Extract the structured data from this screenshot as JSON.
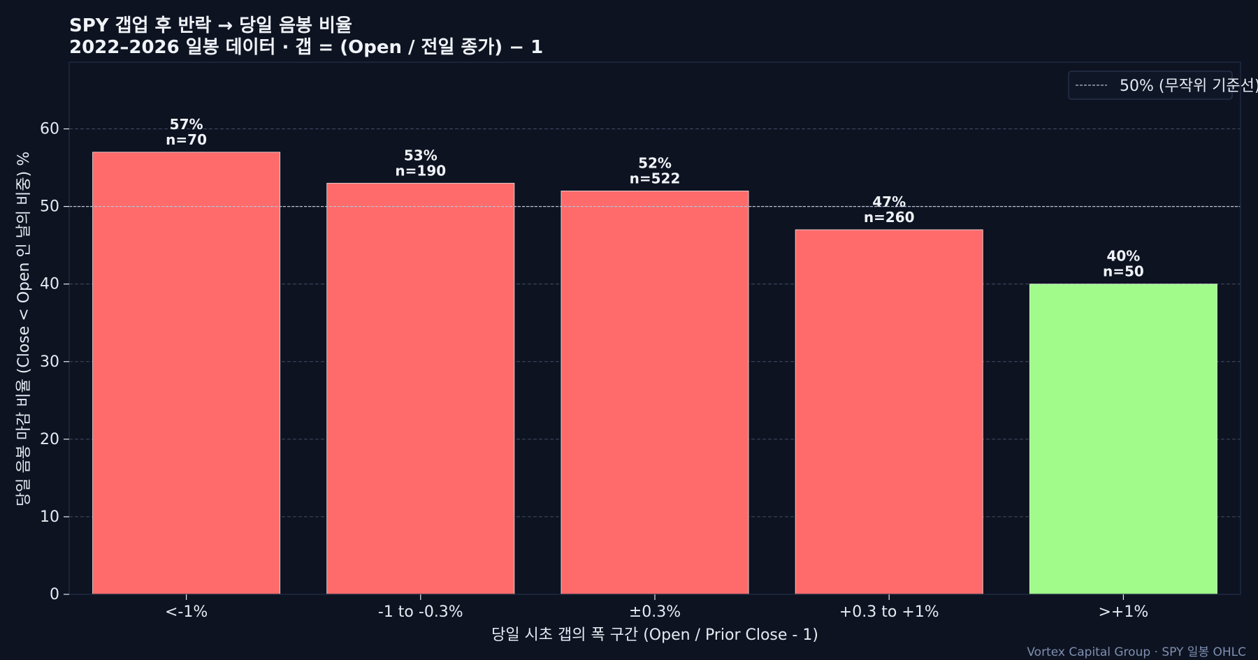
{
  "title": {
    "line1": "SPY 갭업 후 반락 → 당일 음봉 비율",
    "line2": "2022–2026 일봉 데이터 · 갭 = (Open / 전일 종가) − 1"
  },
  "footer": "Vortex Capital Group  ·  SPY 일봉 OHLC",
  "colors": {
    "background": "#0d1321",
    "bar_red": "#ff6b6b",
    "bar_green": "#a0fb8b",
    "text": "#e6ebf2",
    "grid": "#56607a",
    "frame": "#1f2a40"
  },
  "chart_data": {
    "type": "bar",
    "title": "SPY 갭업 후 반락 → 당일 음봉 비율",
    "subtitle": "2022–2026 일봉 데이터 · 갭 = (Open / 전일 종가) − 1",
    "xlabel": "당일 시초 갭의 폭 구간 (Open / Prior Close - 1)",
    "ylabel": "당일 음봉 마감 비율 (Close < Open 인 날의 비중) %",
    "categories": [
      "<-1%",
      "-1 to -0.3%",
      "±0.3%",
      "+0.3 to +1%",
      ">+1%"
    ],
    "values": [
      57,
      53,
      52,
      47,
      40
    ],
    "value_labels": [
      "57%",
      "53%",
      "52%",
      "47%",
      "40%"
    ],
    "n_labels": [
      "n=70",
      "n=190",
      "n=522",
      "n=260",
      "n=50"
    ],
    "bar_colors": [
      "red",
      "red",
      "red",
      "red",
      "green"
    ],
    "ylim": [
      0,
      68.6
    ],
    "yticks": [
      0,
      10,
      20,
      30,
      40,
      50,
      60
    ],
    "grid": true,
    "reference_line": {
      "value": 50,
      "label": "50% (무작위 기준선)"
    },
    "legend": {
      "position": "top-right",
      "entries": [
        "50% (무작위 기준선)"
      ]
    }
  }
}
